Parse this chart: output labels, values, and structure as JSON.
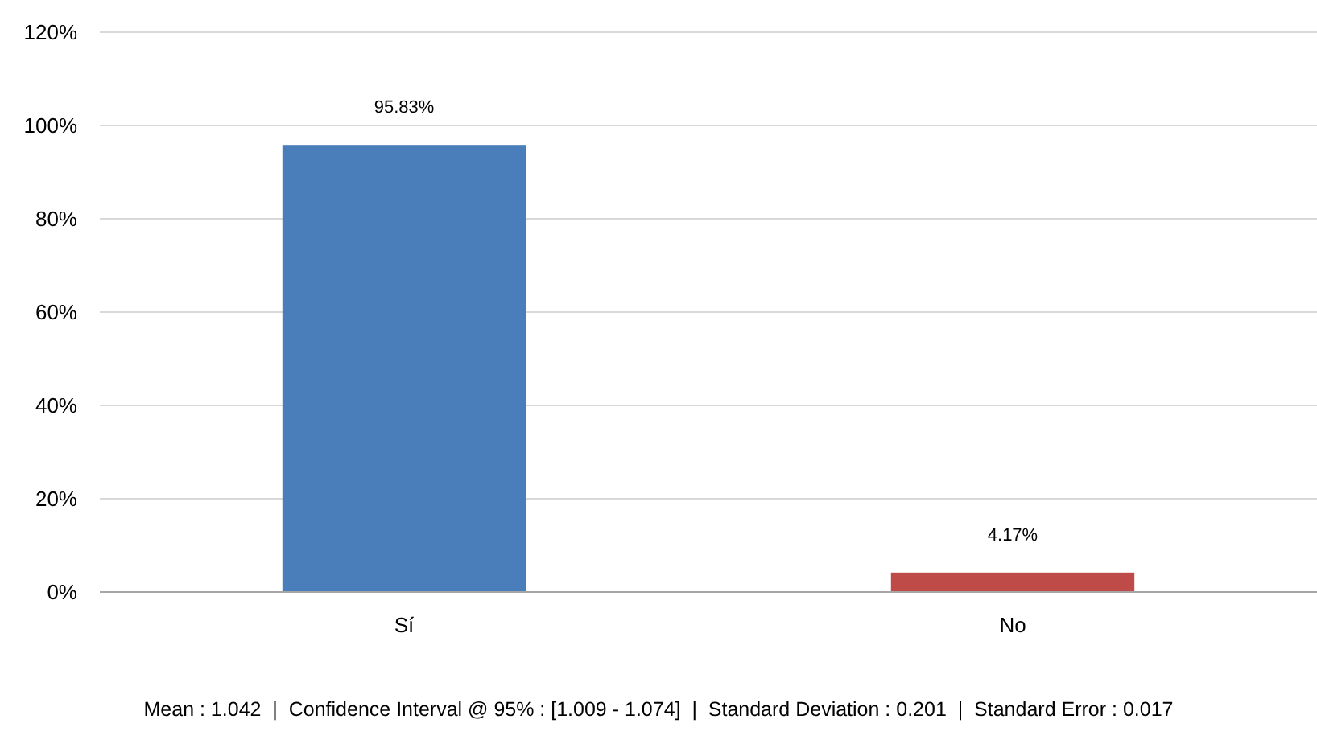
{
  "chart_data": {
    "type": "bar",
    "categories": [
      "Sí",
      "No"
    ],
    "values": [
      95.83,
      4.17
    ],
    "colors": [
      "#4a7ebb",
      "#be4b48"
    ],
    "value_labels": [
      "95.83%",
      "4.17%"
    ],
    "ylim": [
      0,
      120
    ],
    "yticks": [
      {
        "value": 0,
        "label": "0%"
      },
      {
        "value": 20,
        "label": "20%"
      },
      {
        "value": 40,
        "label": "40%"
      },
      {
        "value": 60,
        "label": "60%"
      },
      {
        "value": 80,
        "label": "80%"
      },
      {
        "value": 100,
        "label": "100%"
      },
      {
        "value": 120,
        "label": "120%"
      }
    ],
    "grid": "y",
    "annotations": [
      "Mean : 1.042  |  Confidence Interval @ 95% : [1.009 - 1.074]  |  Standard Deviation : 0.201  |  Standard Error : 0.017"
    ]
  }
}
